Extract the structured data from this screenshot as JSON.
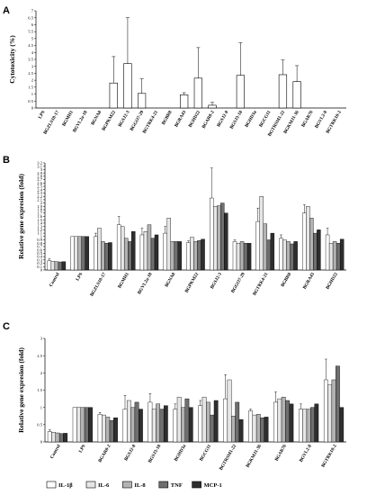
{
  "panels": [
    "A",
    "B",
    "C"
  ],
  "legend": [
    {
      "name": "IL-1β",
      "fill": "#ffffff"
    },
    {
      "name": "IL-6",
      "fill": "#e6e6e6"
    },
    {
      "name": "IL-8",
      "fill": "#b3b3b3"
    },
    {
      "name": "TNF",
      "fill": "#6f6f6f"
    },
    {
      "name": "MCP-1",
      "fill": "#2e2e2e"
    }
  ],
  "chart_data": [
    {
      "type": "bar",
      "ylabel": "Cytotoxicity (%)",
      "ylim": [
        0,
        7
      ],
      "yticks": [
        "0",
        "0.5",
        "1",
        "1.5",
        "2",
        "2.5",
        "3",
        "3.5",
        "4",
        "4.5",
        "5",
        "5.5",
        "6",
        "6.5",
        "7"
      ],
      "categories": [
        "LPS",
        "BGZLS10-17",
        "BGMH1",
        "BGVL2a-18",
        "BGNA8",
        "BGPKM22",
        "BGSJ2-3",
        "BGGO7-29",
        "BGTRK4-21",
        "BGBR8",
        "BGRA43",
        "BGHD22",
        "BGAR8-2",
        "BGSJ2-8",
        "BGSJ3-18",
        "BGHD3a",
        "BGCG11",
        "BGTRSM1-22",
        "BGKMJ1-36",
        "BGAR76",
        "BGVL2-8",
        "BGTRK10-2"
      ],
      "values": [
        0,
        0,
        0,
        0,
        0,
        1.8,
        3.2,
        1.05,
        0,
        0,
        0.95,
        2.15,
        0.2,
        0,
        2.35,
        0,
        0,
        2.4,
        1.9,
        0,
        0,
        0
      ],
      "errors": [
        0,
        0,
        0,
        0,
        0,
        1.9,
        3.3,
        1.05,
        0,
        0,
        0.15,
        2.2,
        0.2,
        0,
        2.35,
        0,
        0,
        1.05,
        1.15,
        0,
        0,
        0
      ]
    },
    {
      "type": "bar",
      "ylabel": "Relative gene expresion (fold)",
      "ylim": [
        0,
        3.2
      ],
      "yticks": [
        "0",
        "0.1",
        "0.2",
        "0.3",
        "0.4",
        "0.5",
        "0.6",
        "0.7",
        "0.8",
        "0.9",
        "1",
        "1.1",
        "1.2",
        "1.3",
        "1.4",
        "1.5",
        "1.6",
        "1.7",
        "1.8",
        "1.9",
        "2",
        "2.1",
        "2.2",
        "2.3",
        "2.4",
        "2.5",
        "2.6",
        "2.7",
        "2.8",
        "2.9",
        "3",
        "3.1",
        "3.2"
      ],
      "categories": [
        "Control",
        "LPS",
        "BGZLS10-17",
        "BGMH1",
        "BGVL2a-18",
        "BGNA8",
        "BGPKM22",
        "BGSJ2-3",
        "BGGO7-29",
        "BGTRK4-21",
        "BGBR8",
        "BGRA43",
        "BGHD22"
      ],
      "series": [
        {
          "name": "IL-1β",
          "values": [
            0.28,
            1,
            1,
            1.35,
            1.05,
            1.1,
            0.82,
            2.15,
            0.85,
            1.45,
            0.95,
            1.7,
            1.05
          ],
          "errors": [
            0.05,
            0,
            0.1,
            0.25,
            0.2,
            0.2,
            0.05,
            0.9,
            0.05,
            0.4,
            0.1,
            0.25,
            0.2
          ]
        },
        {
          "name": "IL-6",
          "values": [
            0.26,
            1,
            1.25,
            1.3,
            1.15,
            1.55,
            0.98,
            1.9,
            0.8,
            2.2,
            0.9,
            1.9,
            0.8
          ]
        },
        {
          "name": "IL-8",
          "values": [
            0.25,
            1,
            0.85,
            0.95,
            1.35,
            0.85,
            0.85,
            1.92,
            0.85,
            1.38,
            0.85,
            1.55,
            0.85
          ]
        },
        {
          "name": "TNF",
          "values": [
            0.24,
            1,
            0.8,
            0.85,
            0.95,
            0.85,
            0.88,
            2.0,
            0.8,
            0.9,
            0.78,
            1.1,
            0.8
          ]
        },
        {
          "name": "MCP-1",
          "values": [
            0.25,
            1,
            0.82,
            1.15,
            1.05,
            0.85,
            0.92,
            1.7,
            0.8,
            1.1,
            0.85,
            1.2,
            0.92
          ]
        }
      ]
    },
    {
      "type": "bar",
      "ylabel": "Relative gene expresion (fold)",
      "ylim": [
        0,
        3
      ],
      "yticks": [
        "0",
        "0.5",
        "1",
        "1.5",
        "2",
        "2.5",
        "3"
      ],
      "categories": [
        "Control",
        "LPS",
        "BGAR8-2",
        "BGSJ2-8",
        "BGSJ3-18",
        "BGHD3a",
        "BGCG11",
        "BGTRSM1-22",
        "BGKMJ1-36",
        "BGAR76",
        "BGVL2-8",
        "BGTRK10-2"
      ],
      "series": [
        {
          "name": "IL-1β",
          "values": [
            0.3,
            1,
            0.8,
            0.95,
            1.15,
            0.95,
            1.05,
            1.25,
            0.9,
            1.15,
            0.95,
            1.8
          ],
          "errors": [
            0.05,
            0,
            0.05,
            0.4,
            0.25,
            0.15,
            0.15,
            0.7,
            0.05,
            0.3,
            0.15,
            0.6
          ]
        },
        {
          "name": "IL-6",
          "values": [
            0.28,
            1,
            0.78,
            1.2,
            0.95,
            1.3,
            1.3,
            1.8,
            0.78,
            1.25,
            0.95,
            1.65
          ]
        },
        {
          "name": "IL-8",
          "values": [
            0.26,
            1,
            0.72,
            1.0,
            1.1,
            1.0,
            1.15,
            0.75,
            0.8,
            1.3,
            0.95,
            1.8
          ]
        },
        {
          "name": "TNF",
          "values": [
            0.24,
            1,
            0.62,
            1.15,
            0.95,
            1.25,
            0.78,
            1.15,
            0.7,
            1.2,
            1.0,
            2.2
          ]
        },
        {
          "name": "MCP-1",
          "values": [
            0.25,
            1,
            0.7,
            0.95,
            1.05,
            1.0,
            1.2,
            0.65,
            0.72,
            1.1,
            1.1,
            1.0
          ]
        }
      ]
    }
  ]
}
